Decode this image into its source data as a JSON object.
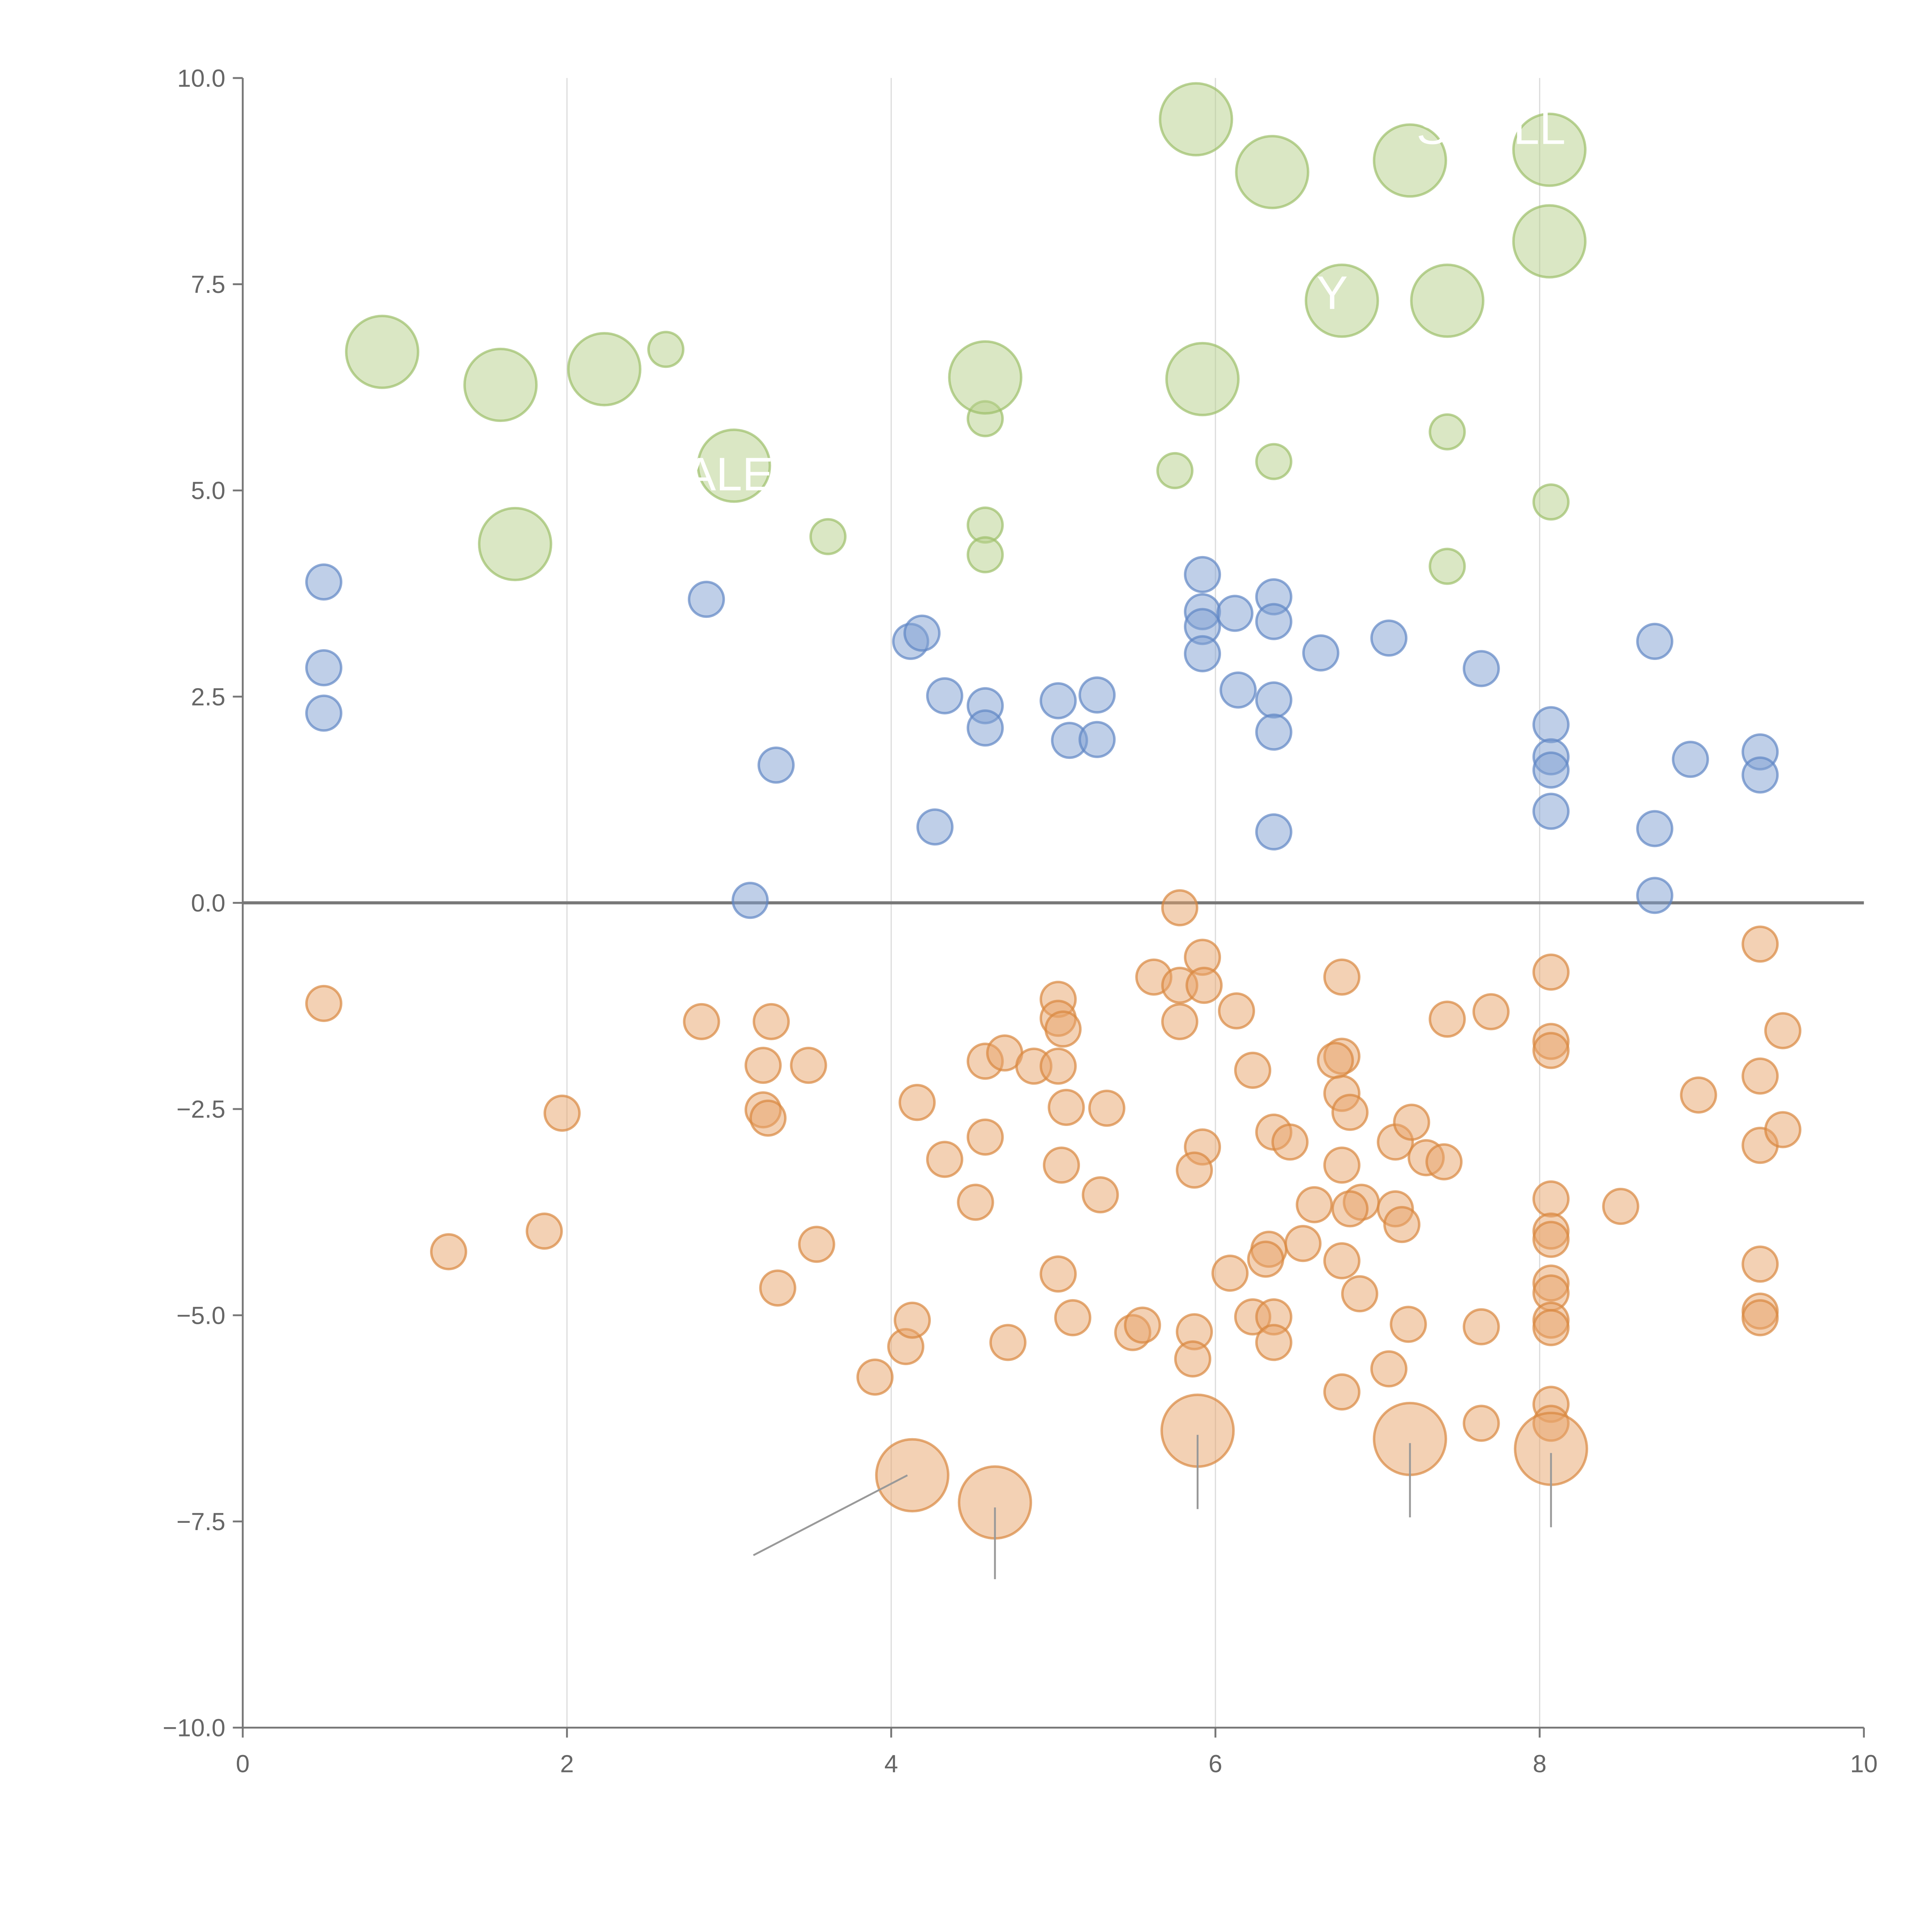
{
  "chart_data": {
    "type": "scatter",
    "title": "",
    "xlabel": "",
    "ylabel": "",
    "xlim": [
      0,
      10
    ],
    "ylim": [
      -10,
      10
    ],
    "x_ticks": [
      "0",
      "2",
      "4",
      "6",
      "8",
      "10"
    ],
    "y_ticks": [
      "10.0",
      "7.5",
      "5.0",
      "2.5",
      "0.0",
      "−2.5",
      "−5.0",
      "−7.5",
      "−10.0"
    ],
    "x_tick_values": [
      0,
      2,
      4,
      6,
      8,
      10
    ],
    "y_tick_values": [
      10,
      7.5,
      5,
      2.5,
      0,
      -2.5,
      -5,
      -7.5,
      -10
    ],
    "grid": "vertical",
    "reference_line_y": 0,
    "series": [
      {
        "name": "green",
        "color": "#b5cf8a",
        "stroke": "#9cbf6a",
        "points_large": [
          [
            5.88,
            9.5
          ],
          [
            6.35,
            8.86
          ],
          [
            7.2,
            9.0
          ],
          [
            8.06,
            9.13
          ],
          [
            8.06,
            8.02
          ],
          [
            6.78,
            7.3
          ],
          [
            7.43,
            7.3
          ],
          [
            0.86,
            6.68
          ],
          [
            1.59,
            6.28
          ],
          [
            2.23,
            6.47
          ],
          [
            4.58,
            6.37
          ],
          [
            5.92,
            6.35
          ],
          [
            3.03,
            5.3
          ],
          [
            1.68,
            4.35
          ]
        ],
        "points_small": [
          [
            2.61,
            6.71
          ],
          [
            4.58,
            5.87
          ],
          [
            5.75,
            5.24
          ],
          [
            6.36,
            5.35
          ],
          [
            7.43,
            5.71
          ],
          [
            8.07,
            4.86
          ],
          [
            3.61,
            4.44
          ],
          [
            4.58,
            4.58
          ],
          [
            4.58,
            4.22
          ],
          [
            7.43,
            4.08
          ]
        ]
      },
      {
        "name": "blue",
        "color": "#7fa0d2",
        "stroke": "#5f86c4",
        "points_large": [],
        "points_small": [
          [
            0.5,
            3.89
          ],
          [
            0.5,
            2.85
          ],
          [
            0.5,
            2.3
          ],
          [
            2.86,
            3.68
          ],
          [
            3.29,
            1.67
          ],
          [
            3.13,
            0.03
          ],
          [
            4.12,
            3.17
          ],
          [
            4.19,
            3.27
          ],
          [
            4.33,
            2.51
          ],
          [
            4.27,
            0.92
          ],
          [
            4.58,
            2.39
          ],
          [
            4.58,
            2.12
          ],
          [
            5.03,
            2.45
          ],
          [
            5.1,
            1.97
          ],
          [
            5.27,
            2.52
          ],
          [
            5.27,
            1.98
          ],
          [
            5.92,
            3.98
          ],
          [
            5.92,
            3.53
          ],
          [
            5.92,
            3.35
          ],
          [
            5.92,
            3.02
          ],
          [
            6.12,
            3.51
          ],
          [
            6.14,
            2.58
          ],
          [
            6.36,
            3.71
          ],
          [
            6.36,
            3.41
          ],
          [
            6.36,
            2.46
          ],
          [
            6.36,
            2.07
          ],
          [
            6.36,
            0.86
          ],
          [
            6.65,
            3.03
          ],
          [
            7.07,
            3.21
          ],
          [
            7.64,
            2.84
          ],
          [
            8.07,
            2.16
          ],
          [
            8.07,
            1.77
          ],
          [
            8.07,
            1.61
          ],
          [
            8.07,
            1.11
          ],
          [
            8.71,
            3.17
          ],
          [
            8.71,
            0.9
          ],
          [
            8.71,
            0.09
          ],
          [
            8.93,
            1.74
          ],
          [
            9.36,
            1.83
          ],
          [
            9.36,
            1.55
          ]
        ]
      },
      {
        "name": "orange",
        "color": "#e8a46a",
        "stroke": "#d9883f",
        "points_large": [
          [
            4.13,
            -6.94
          ],
          [
            4.64,
            -7.27
          ],
          [
            5.89,
            -6.4
          ],
          [
            7.2,
            -6.5
          ],
          [
            8.07,
            -6.62
          ]
        ],
        "points_small": [
          [
            0.5,
            -1.22
          ],
          [
            1.27,
            -4.23
          ],
          [
            1.86,
            -3.98
          ],
          [
            1.97,
            -2.55
          ],
          [
            2.83,
            -1.44
          ],
          [
            3.21,
            -1.97
          ],
          [
            3.26,
            -1.44
          ],
          [
            3.21,
            -2.51
          ],
          [
            3.24,
            -2.61
          ],
          [
            3.49,
            -1.97
          ],
          [
            3.3,
            -4.67
          ],
          [
            3.54,
            -4.14
          ],
          [
            3.9,
            -5.75
          ],
          [
            4.09,
            -5.38
          ],
          [
            4.13,
            -5.06
          ],
          [
            4.16,
            -2.42
          ],
          [
            4.33,
            -3.11
          ],
          [
            4.52,
            -3.63
          ],
          [
            4.58,
            -2.84
          ],
          [
            4.58,
            -1.92
          ],
          [
            4.7,
            -1.82
          ],
          [
            4.72,
            -5.33
          ],
          [
            4.88,
            -1.98
          ],
          [
            5.03,
            -1.17
          ],
          [
            5.03,
            -1.4
          ],
          [
            5.06,
            -1.53
          ],
          [
            5.03,
            -1.98
          ],
          [
            5.08,
            -2.48
          ],
          [
            5.05,
            -3.18
          ],
          [
            5.29,
            -3.54
          ],
          [
            5.33,
            -2.49
          ],
          [
            5.03,
            -4.5
          ],
          [
            5.12,
            -5.03
          ],
          [
            5.49,
            -5.21
          ],
          [
            5.55,
            -5.12
          ],
          [
            5.62,
            -0.9
          ],
          [
            5.78,
            -0.06
          ],
          [
            5.78,
            -1.0
          ],
          [
            5.78,
            -1.44
          ],
          [
            5.92,
            -0.66
          ],
          [
            5.93,
            -1.0
          ],
          [
            5.92,
            -2.96
          ],
          [
            5.87,
            -3.24
          ],
          [
            5.87,
            -5.2
          ],
          [
            5.86,
            -5.53
          ],
          [
            6.13,
            -1.31
          ],
          [
            6.23,
            -2.03
          ],
          [
            6.09,
            -4.49
          ],
          [
            6.23,
            -5.02
          ],
          [
            6.33,
            -4.2
          ],
          [
            6.31,
            -4.32
          ],
          [
            6.36,
            -2.78
          ],
          [
            6.46,
            -2.9
          ],
          [
            6.36,
            -5.02
          ],
          [
            6.36,
            -5.33
          ],
          [
            6.54,
            -4.13
          ],
          [
            6.61,
            -3.66
          ],
          [
            6.78,
            -0.9
          ],
          [
            6.78,
            -1.86
          ],
          [
            6.74,
            -1.91
          ],
          [
            6.78,
            -2.31
          ],
          [
            6.83,
            -2.54
          ],
          [
            6.78,
            -3.18
          ],
          [
            6.9,
            -3.63
          ],
          [
            6.83,
            -3.71
          ],
          [
            6.78,
            -4.34
          ],
          [
            6.89,
            -4.74
          ],
          [
            6.78,
            -5.93
          ],
          [
            7.11,
            -2.9
          ],
          [
            7.21,
            -2.66
          ],
          [
            7.3,
            -3.09
          ],
          [
            7.41,
            -3.14
          ],
          [
            7.11,
            -3.71
          ],
          [
            7.15,
            -3.9
          ],
          [
            7.19,
            -5.11
          ],
          [
            7.07,
            -5.65
          ],
          [
            7.43,
            -1.41
          ],
          [
            7.7,
            -1.32
          ],
          [
            7.64,
            -5.14
          ],
          [
            7.64,
            -6.31
          ],
          [
            8.07,
            -0.84
          ],
          [
            8.07,
            -1.68
          ],
          [
            8.07,
            -1.79
          ],
          [
            8.07,
            -3.59
          ],
          [
            8.07,
            -3.98
          ],
          [
            8.07,
            -4.08
          ],
          [
            8.07,
            -4.61
          ],
          [
            8.07,
            -4.73
          ],
          [
            8.07,
            -5.06
          ],
          [
            8.07,
            -5.15
          ],
          [
            8.07,
            -6.08
          ],
          [
            8.07,
            -6.31
          ],
          [
            8.5,
            -3.68
          ],
          [
            8.98,
            -2.33
          ],
          [
            9.36,
            -0.5
          ],
          [
            9.36,
            -2.1
          ],
          [
            9.36,
            -2.94
          ],
          [
            9.36,
            -4.38
          ],
          [
            9.36,
            -4.95
          ],
          [
            9.36,
            -5.03
          ],
          [
            9.5,
            -1.55
          ],
          [
            9.5,
            -2.75
          ]
        ]
      }
    ],
    "leader_lines": [
      [
        [
          3.15,
          -7.91
        ],
        [
          4.1,
          -6.94
        ]
      ],
      [
        [
          4.64,
          -7.33
        ],
        [
          4.64,
          -8.2
        ]
      ],
      [
        [
          5.89,
          -6.45
        ],
        [
          5.89,
          -7.35
        ]
      ],
      [
        [
          7.2,
          -6.55
        ],
        [
          7.2,
          -7.45
        ]
      ],
      [
        [
          8.07,
          -6.67
        ],
        [
          8.07,
          -7.57
        ]
      ]
    ],
    "annotations": [
      {
        "text": "SHELL",
        "x": 7.7,
        "y": 9.2
      },
      {
        "text": "Y",
        "x": 6.72,
        "y": 7.2
      },
      {
        "text": "ALE",
        "x": 3.0,
        "y": 5.0
      }
    ]
  }
}
